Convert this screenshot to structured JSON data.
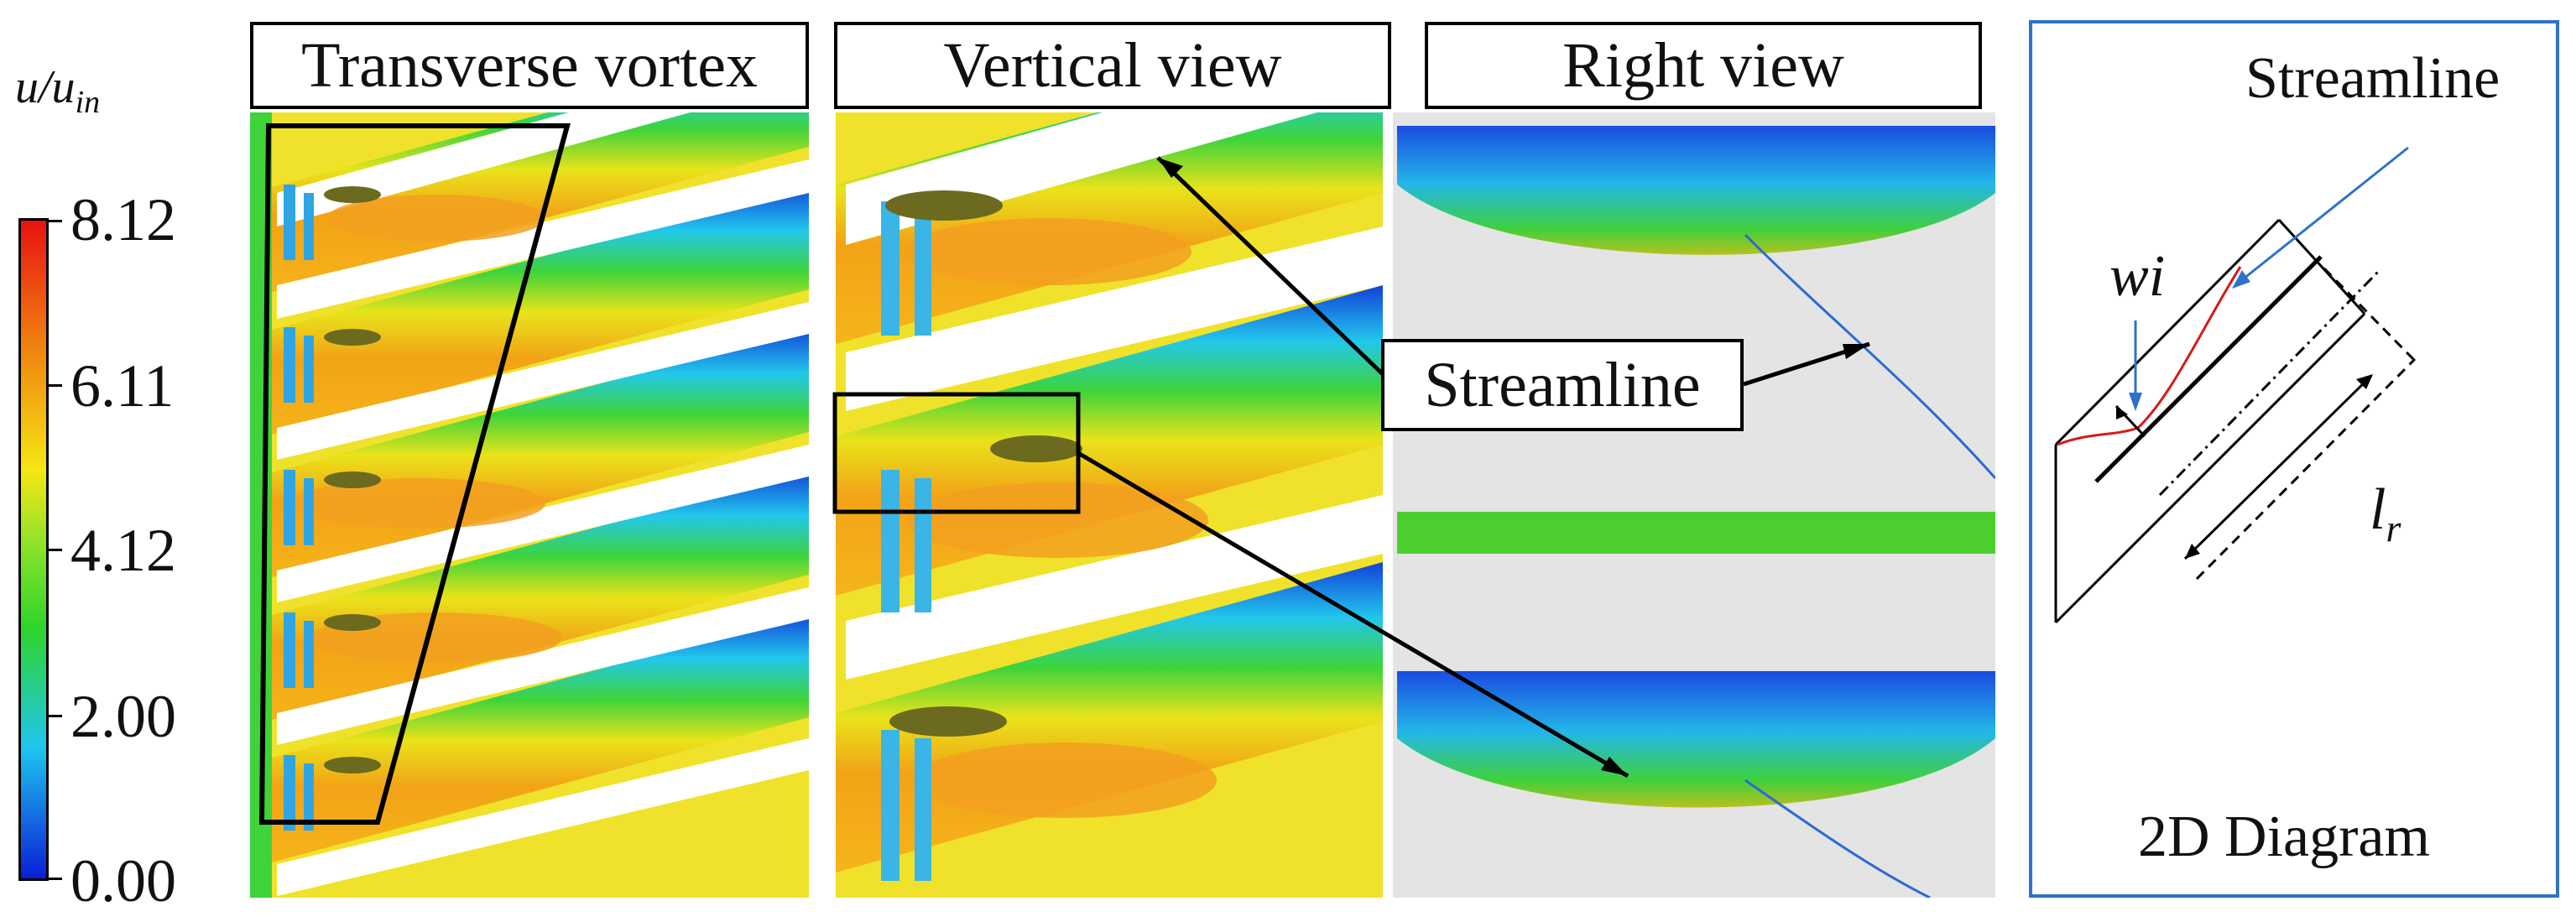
{
  "colorbar": {
    "label_main": "u/u",
    "label_sub": "in",
    "ticks": [
      "8.12",
      "6.11",
      "4.12",
      "2.00",
      "0.00"
    ],
    "colors": [
      "#e8120f",
      "#f6e614",
      "#30d42c",
      "#1fc6ee",
      "#0a1fd6"
    ]
  },
  "panels": {
    "transverse": {
      "title": "Transverse vortex"
    },
    "vertical": {
      "title": "Vertical view"
    },
    "right": {
      "title": "Right view"
    }
  },
  "callout": {
    "label": "Streamline"
  },
  "diagram": {
    "streamline_label": "Streamline",
    "wi_label": "wi",
    "lr_main": "l",
    "lr_sub": "r",
    "caption": "2D Diagram",
    "accent": "#2e72c9",
    "streamline_color": "#d61a1a"
  }
}
